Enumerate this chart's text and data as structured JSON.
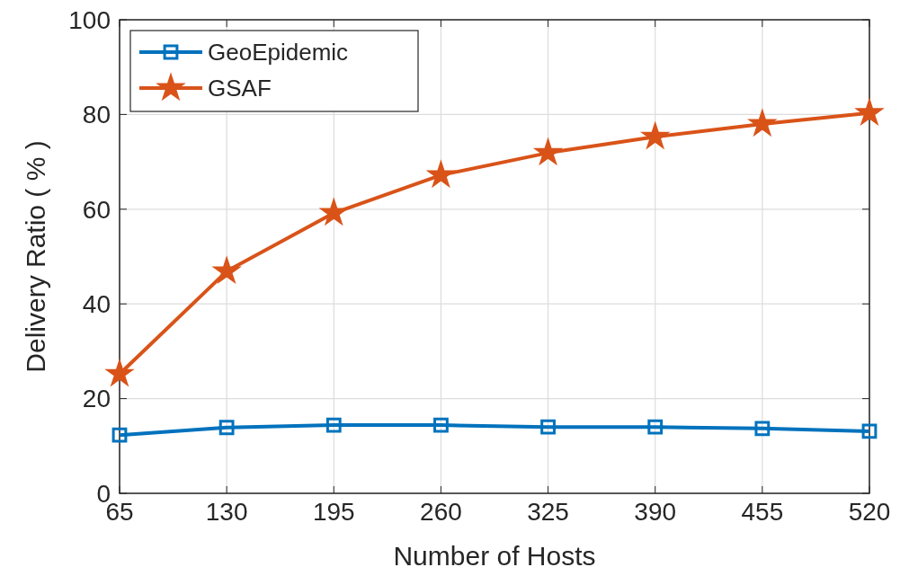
{
  "chart_data": {
    "type": "line",
    "xlabel": "Number of Hosts",
    "ylabel": "Delivery Ratio ( % )",
    "x": [
      65,
      130,
      195,
      260,
      325,
      390,
      455,
      520
    ],
    "series": [
      {
        "name": "GeoEpidemic",
        "color": "#0072bd",
        "marker": "square",
        "values": [
          12.3,
          13.9,
          14.4,
          14.4,
          14.0,
          14.0,
          13.7,
          13.1
        ]
      },
      {
        "name": "GSAF",
        "color": "#d95319",
        "marker": "star",
        "values": [
          25.2,
          46.9,
          59.2,
          67.2,
          71.9,
          75.3,
          78.0,
          80.3
        ]
      }
    ],
    "xlim": [
      65,
      520
    ],
    "xticks": [
      65,
      130,
      195,
      260,
      325,
      390,
      455,
      520
    ],
    "ylim": [
      0,
      100
    ],
    "yticks": [
      0,
      20,
      40,
      60,
      80,
      100
    ],
    "grid": true,
    "legend": "top left",
    "line_style": "solid"
  }
}
